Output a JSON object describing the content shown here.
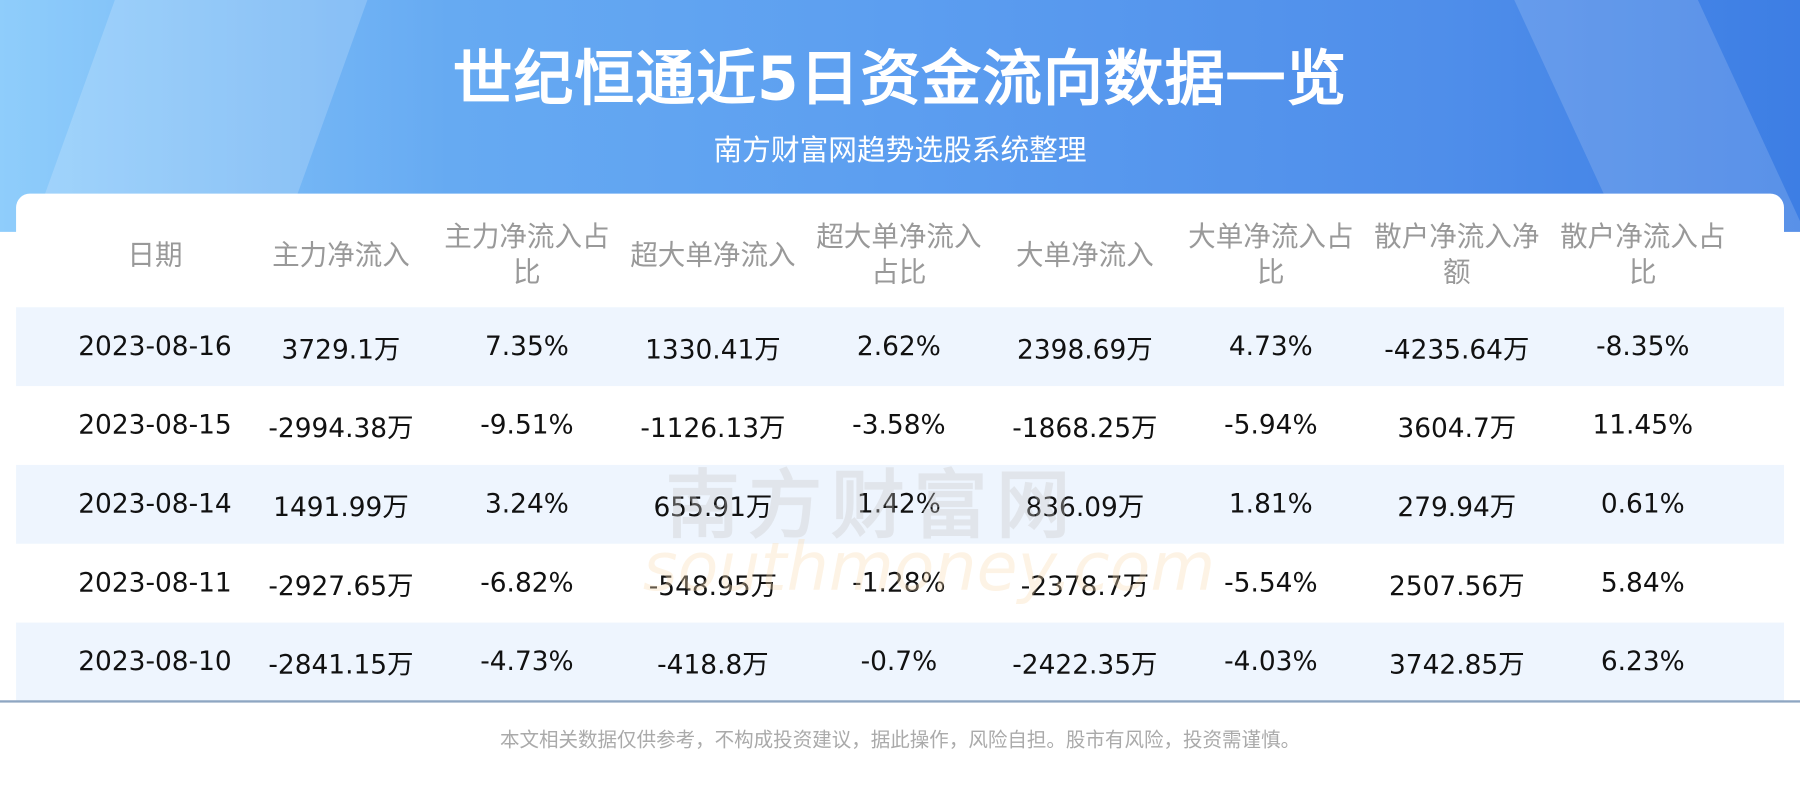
{
  "header": {
    "title": "世纪恒通近5日资金流向数据一览",
    "subtitle": "南方财富网趋势选股系统整理"
  },
  "table": {
    "columns": [
      "日期",
      "主力净流入",
      "主力净流入占比",
      "超大单净流入",
      "超大单净流入占比",
      "大单净流入",
      "大单净流入占比",
      "散户净流入净额",
      "散户净流入占比"
    ],
    "rows": [
      [
        "2023-08-16",
        "3729.1万",
        "7.35%",
        "1330.41万",
        "2.62%",
        "2398.69万",
        "4.73%",
        "-4235.64万",
        "-8.35%"
      ],
      [
        "2023-08-15",
        "-2994.38万",
        "-9.51%",
        "-1126.13万",
        "-3.58%",
        "-1868.25万",
        "-5.94%",
        "3604.7万",
        "11.45%"
      ],
      [
        "2023-08-14",
        "1491.99万",
        "3.24%",
        "655.91万",
        "1.42%",
        "836.09万",
        "1.81%",
        "279.94万",
        "0.61%"
      ],
      [
        "2023-08-11",
        "-2927.65万",
        "-6.82%",
        "-548.95万",
        "-1.28%",
        "-2378.7万",
        "-5.54%",
        "2507.56万",
        "5.84%"
      ],
      [
        "2023-08-10",
        "-2841.15万",
        "-4.73%",
        "-418.8万",
        "-0.7%",
        "-2422.35万",
        "-4.03%",
        "3742.85万",
        "6.23%"
      ]
    ]
  },
  "watermark": {
    "cn": "南方财富网",
    "en": "southmoney.com"
  },
  "footer": "本文相关数据仅供参考，不构成投资建议，据此操作，风险自担。股市有风险，投资需谨慎。",
  "colors": {
    "header_blue": "#5c9ef0",
    "row_alt": "#eef5fe"
  }
}
